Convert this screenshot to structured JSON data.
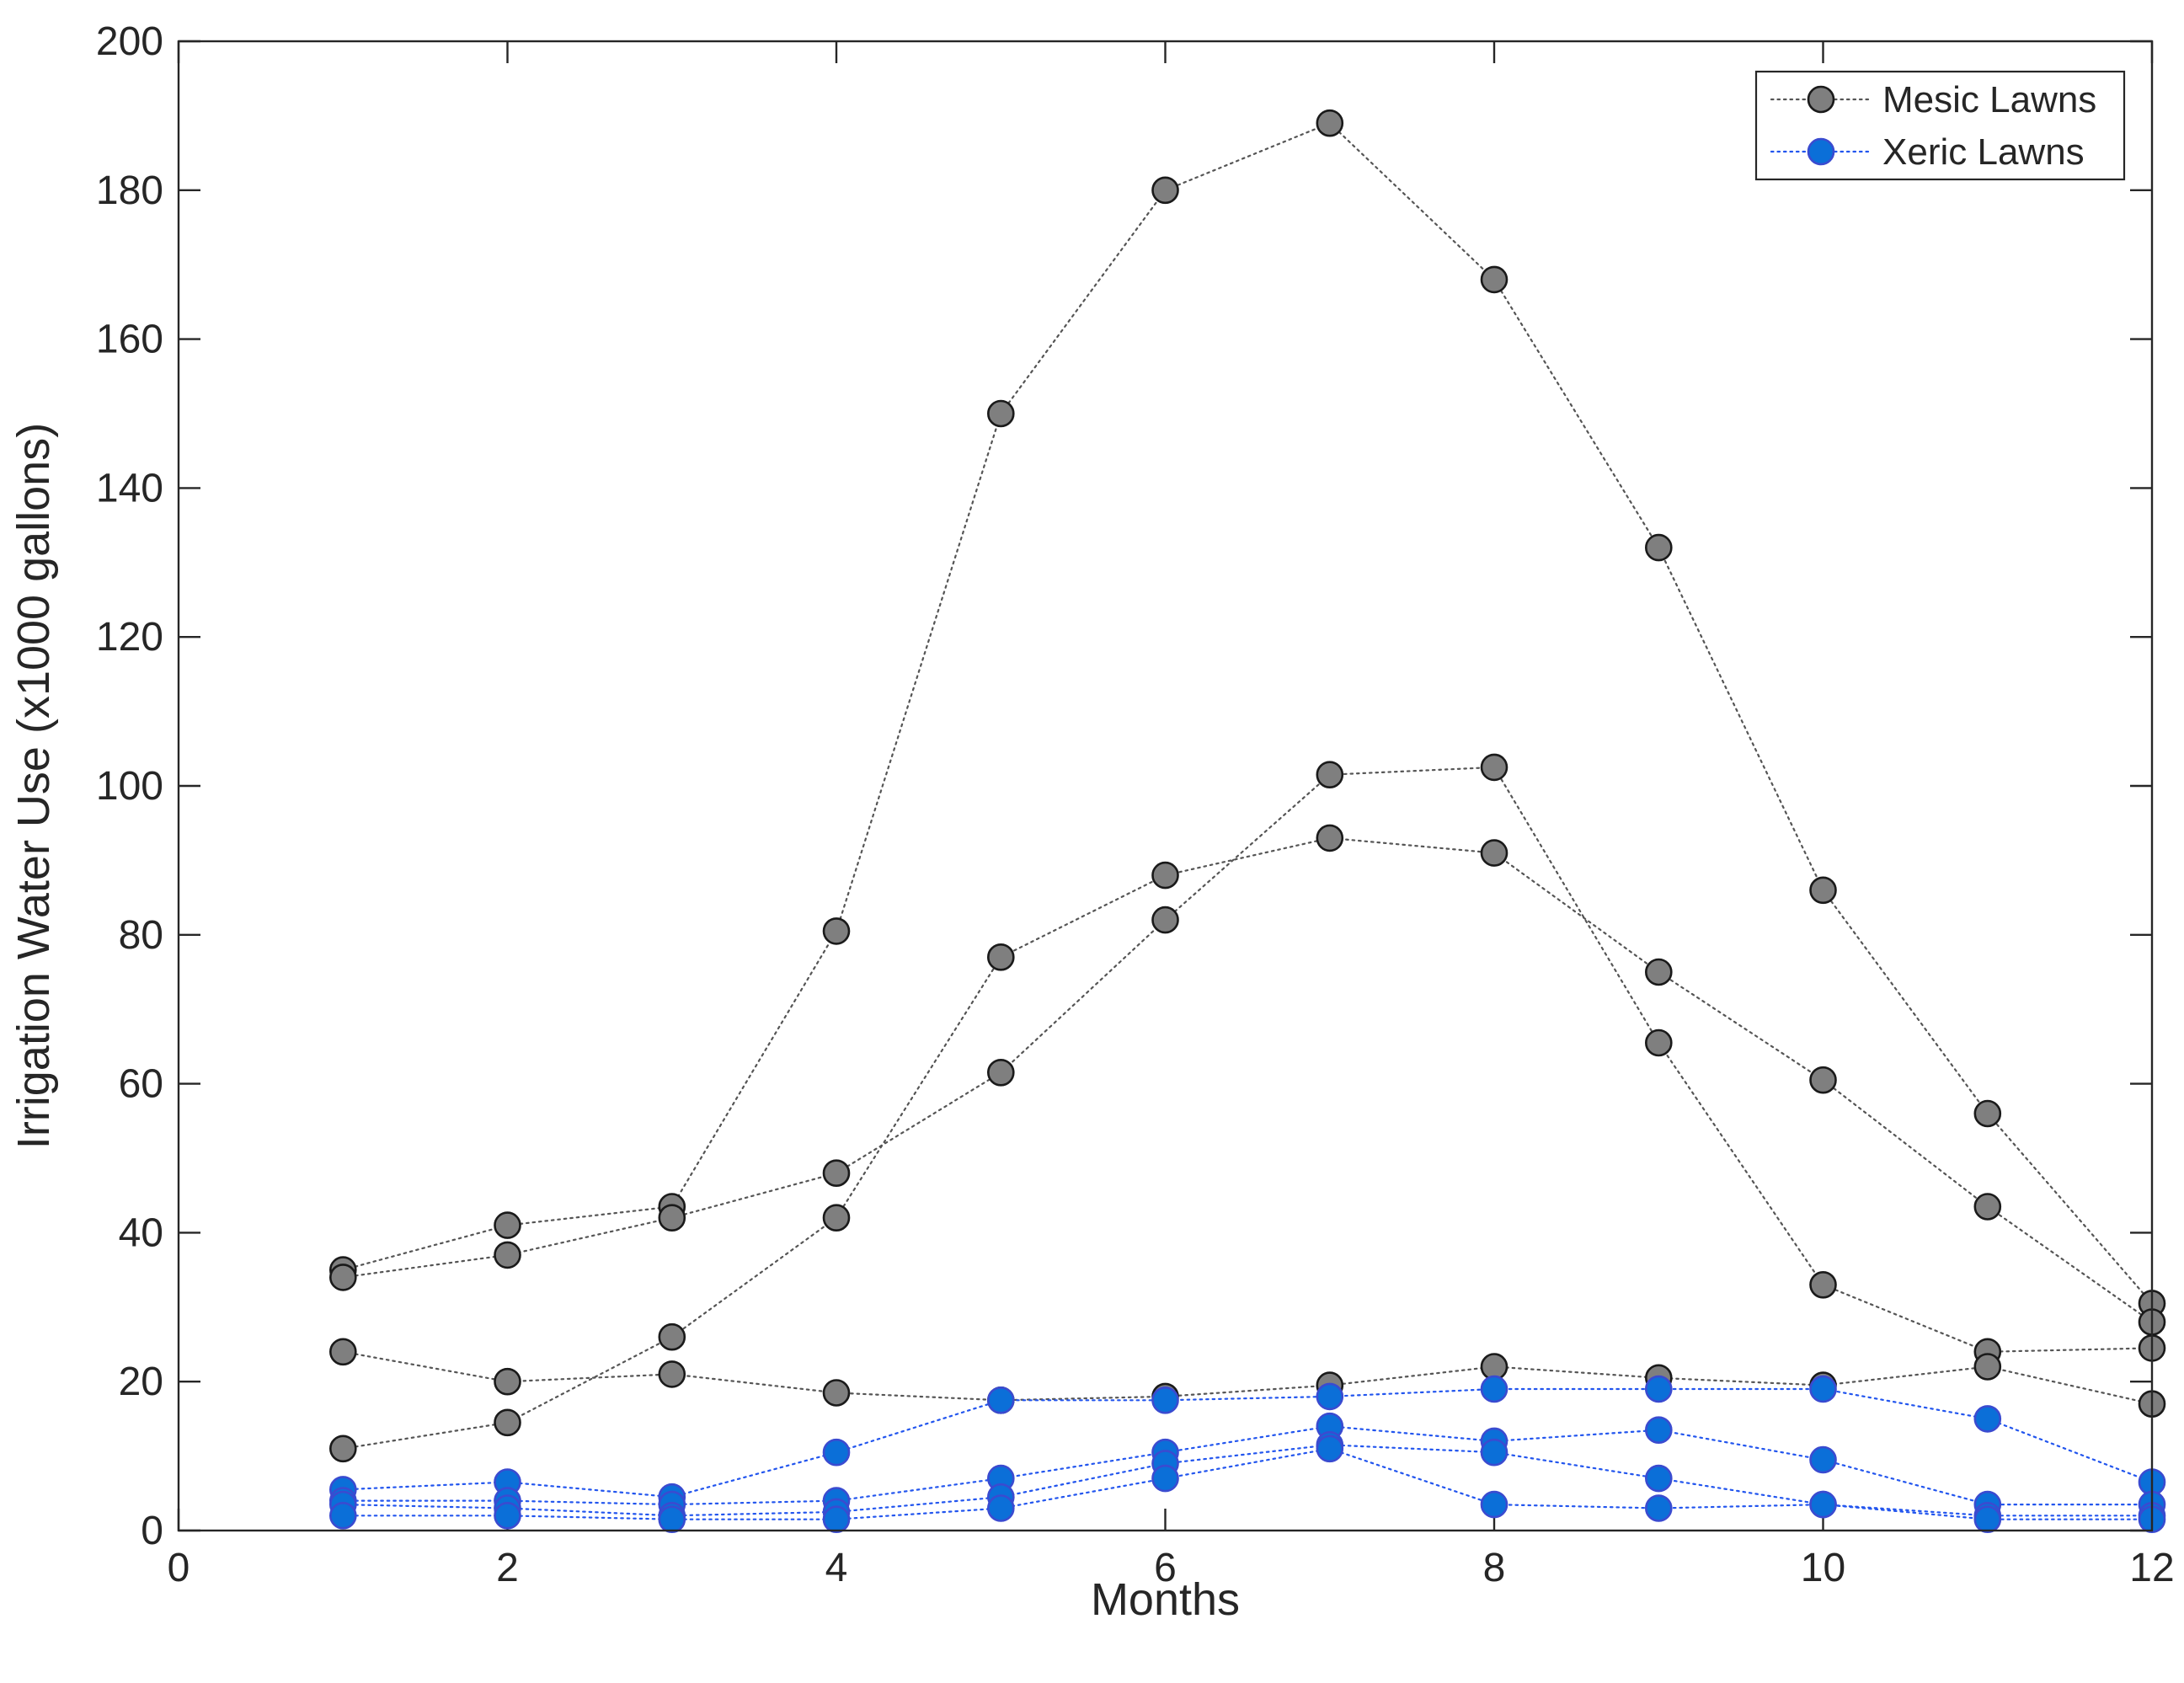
{
  "chart_data": {
    "type": "line",
    "xlabel": "Months",
    "ylabel": "Irrigation Water Use (x1000 gallons)",
    "xlim": [
      0,
      12
    ],
    "ylim": [
      0,
      200
    ],
    "xticks": [
      0,
      2,
      4,
      6,
      8,
      10,
      12
    ],
    "yticks": [
      0,
      20,
      40,
      60,
      80,
      100,
      120,
      140,
      160,
      180,
      200
    ],
    "x": [
      1,
      2,
      3,
      4,
      5,
      6,
      7,
      8,
      9,
      10,
      11,
      12
    ],
    "legend": {
      "position": "top-right",
      "entries": [
        {
          "name": "Mesic Lawns",
          "group": "mesic"
        },
        {
          "name": "Xeric Lawns",
          "group": "xeric"
        }
      ]
    },
    "colors": {
      "mesic_marker": "#7f7f7f",
      "mesic_line": "#555555",
      "xeric_marker": "#0b6fd8",
      "xeric_line": "#2255ee",
      "axis": "#262626"
    },
    "series": [
      {
        "name": "Mesic Lawns",
        "group": "mesic",
        "values": [
          35,
          41,
          43.5,
          80.5,
          150,
          180,
          189,
          168,
          132,
          86,
          56,
          30.5
        ]
      },
      {
        "name": "Mesic Lawns",
        "group": "mesic",
        "values": [
          34,
          37,
          42,
          48,
          61.5,
          82,
          101.5,
          102.5,
          65.5,
          33,
          24,
          24.5
        ]
      },
      {
        "name": "Mesic Lawns",
        "group": "mesic",
        "values": [
          11,
          14.5,
          26,
          42,
          77,
          88,
          93,
          91,
          75,
          60.5,
          43.5,
          28
        ]
      },
      {
        "name": "Mesic Lawns",
        "group": "mesic",
        "values": [
          24,
          20,
          21,
          18.5,
          17.5,
          18,
          19.5,
          22,
          20.5,
          19.5,
          22,
          17
        ]
      },
      {
        "name": "Xeric Lawns",
        "group": "xeric",
        "values": [
          5.5,
          6.5,
          4.5,
          10.5,
          17.5,
          17.5,
          18,
          19,
          19,
          19,
          15,
          6.5
        ]
      },
      {
        "name": "Xeric Lawns",
        "group": "xeric",
        "values": [
          4,
          4,
          3.5,
          4,
          7,
          10.5,
          14,
          12,
          13.5,
          9.5,
          3.5,
          3.5
        ]
      },
      {
        "name": "Xeric Lawns",
        "group": "xeric",
        "values": [
          3.5,
          3,
          2,
          2.5,
          4.5,
          9,
          11.5,
          10.5,
          7,
          3.5,
          2,
          2
        ]
      },
      {
        "name": "Xeric Lawns",
        "group": "xeric",
        "values": [
          2,
          2,
          1.5,
          1.5,
          3,
          7,
          11,
          3.5,
          3,
          3.5,
          1.5,
          1.5
        ]
      }
    ]
  }
}
